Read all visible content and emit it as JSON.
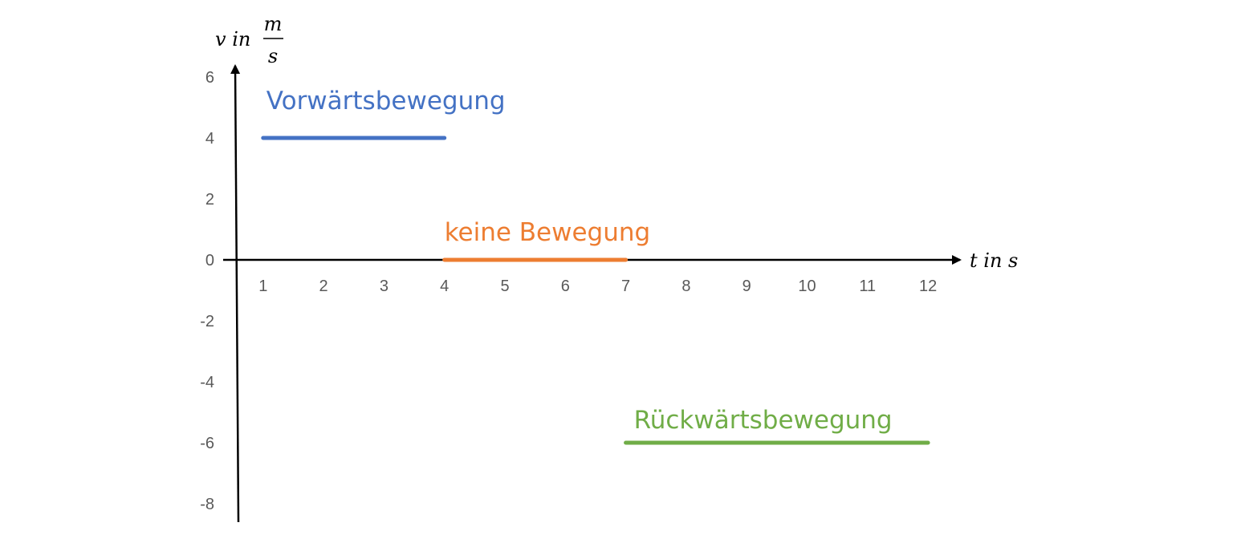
{
  "chart_data": {
    "type": "line",
    "title": "",
    "xlabel": {
      "prefix": "t in s"
    },
    "ylabel": {
      "prefix": "v in",
      "numerator": "m",
      "denominator": "s"
    },
    "xlim": [
      0,
      12
    ],
    "ylim": [
      -8,
      6
    ],
    "x_ticks": [
      "1",
      "2",
      "3",
      "4",
      "5",
      "6",
      "7",
      "8",
      "9",
      "10",
      "11",
      "12"
    ],
    "y_ticks": [
      "6",
      "4",
      "2",
      "0",
      "-2",
      "-4",
      "-6",
      "-8"
    ],
    "grid": false,
    "series": [
      {
        "name": "Vorwärtsbewegung",
        "color": "#4472C4",
        "x": [
          1,
          4
        ],
        "y": [
          4,
          4
        ]
      },
      {
        "name": "keine Bewegung",
        "color": "#ED7D31",
        "x": [
          4,
          7
        ],
        "y": [
          0,
          0
        ]
      },
      {
        "name": "Rückwärtsbewegung",
        "color": "#70AD47",
        "x": [
          7,
          12
        ],
        "y": [
          -6,
          -6
        ]
      }
    ]
  }
}
